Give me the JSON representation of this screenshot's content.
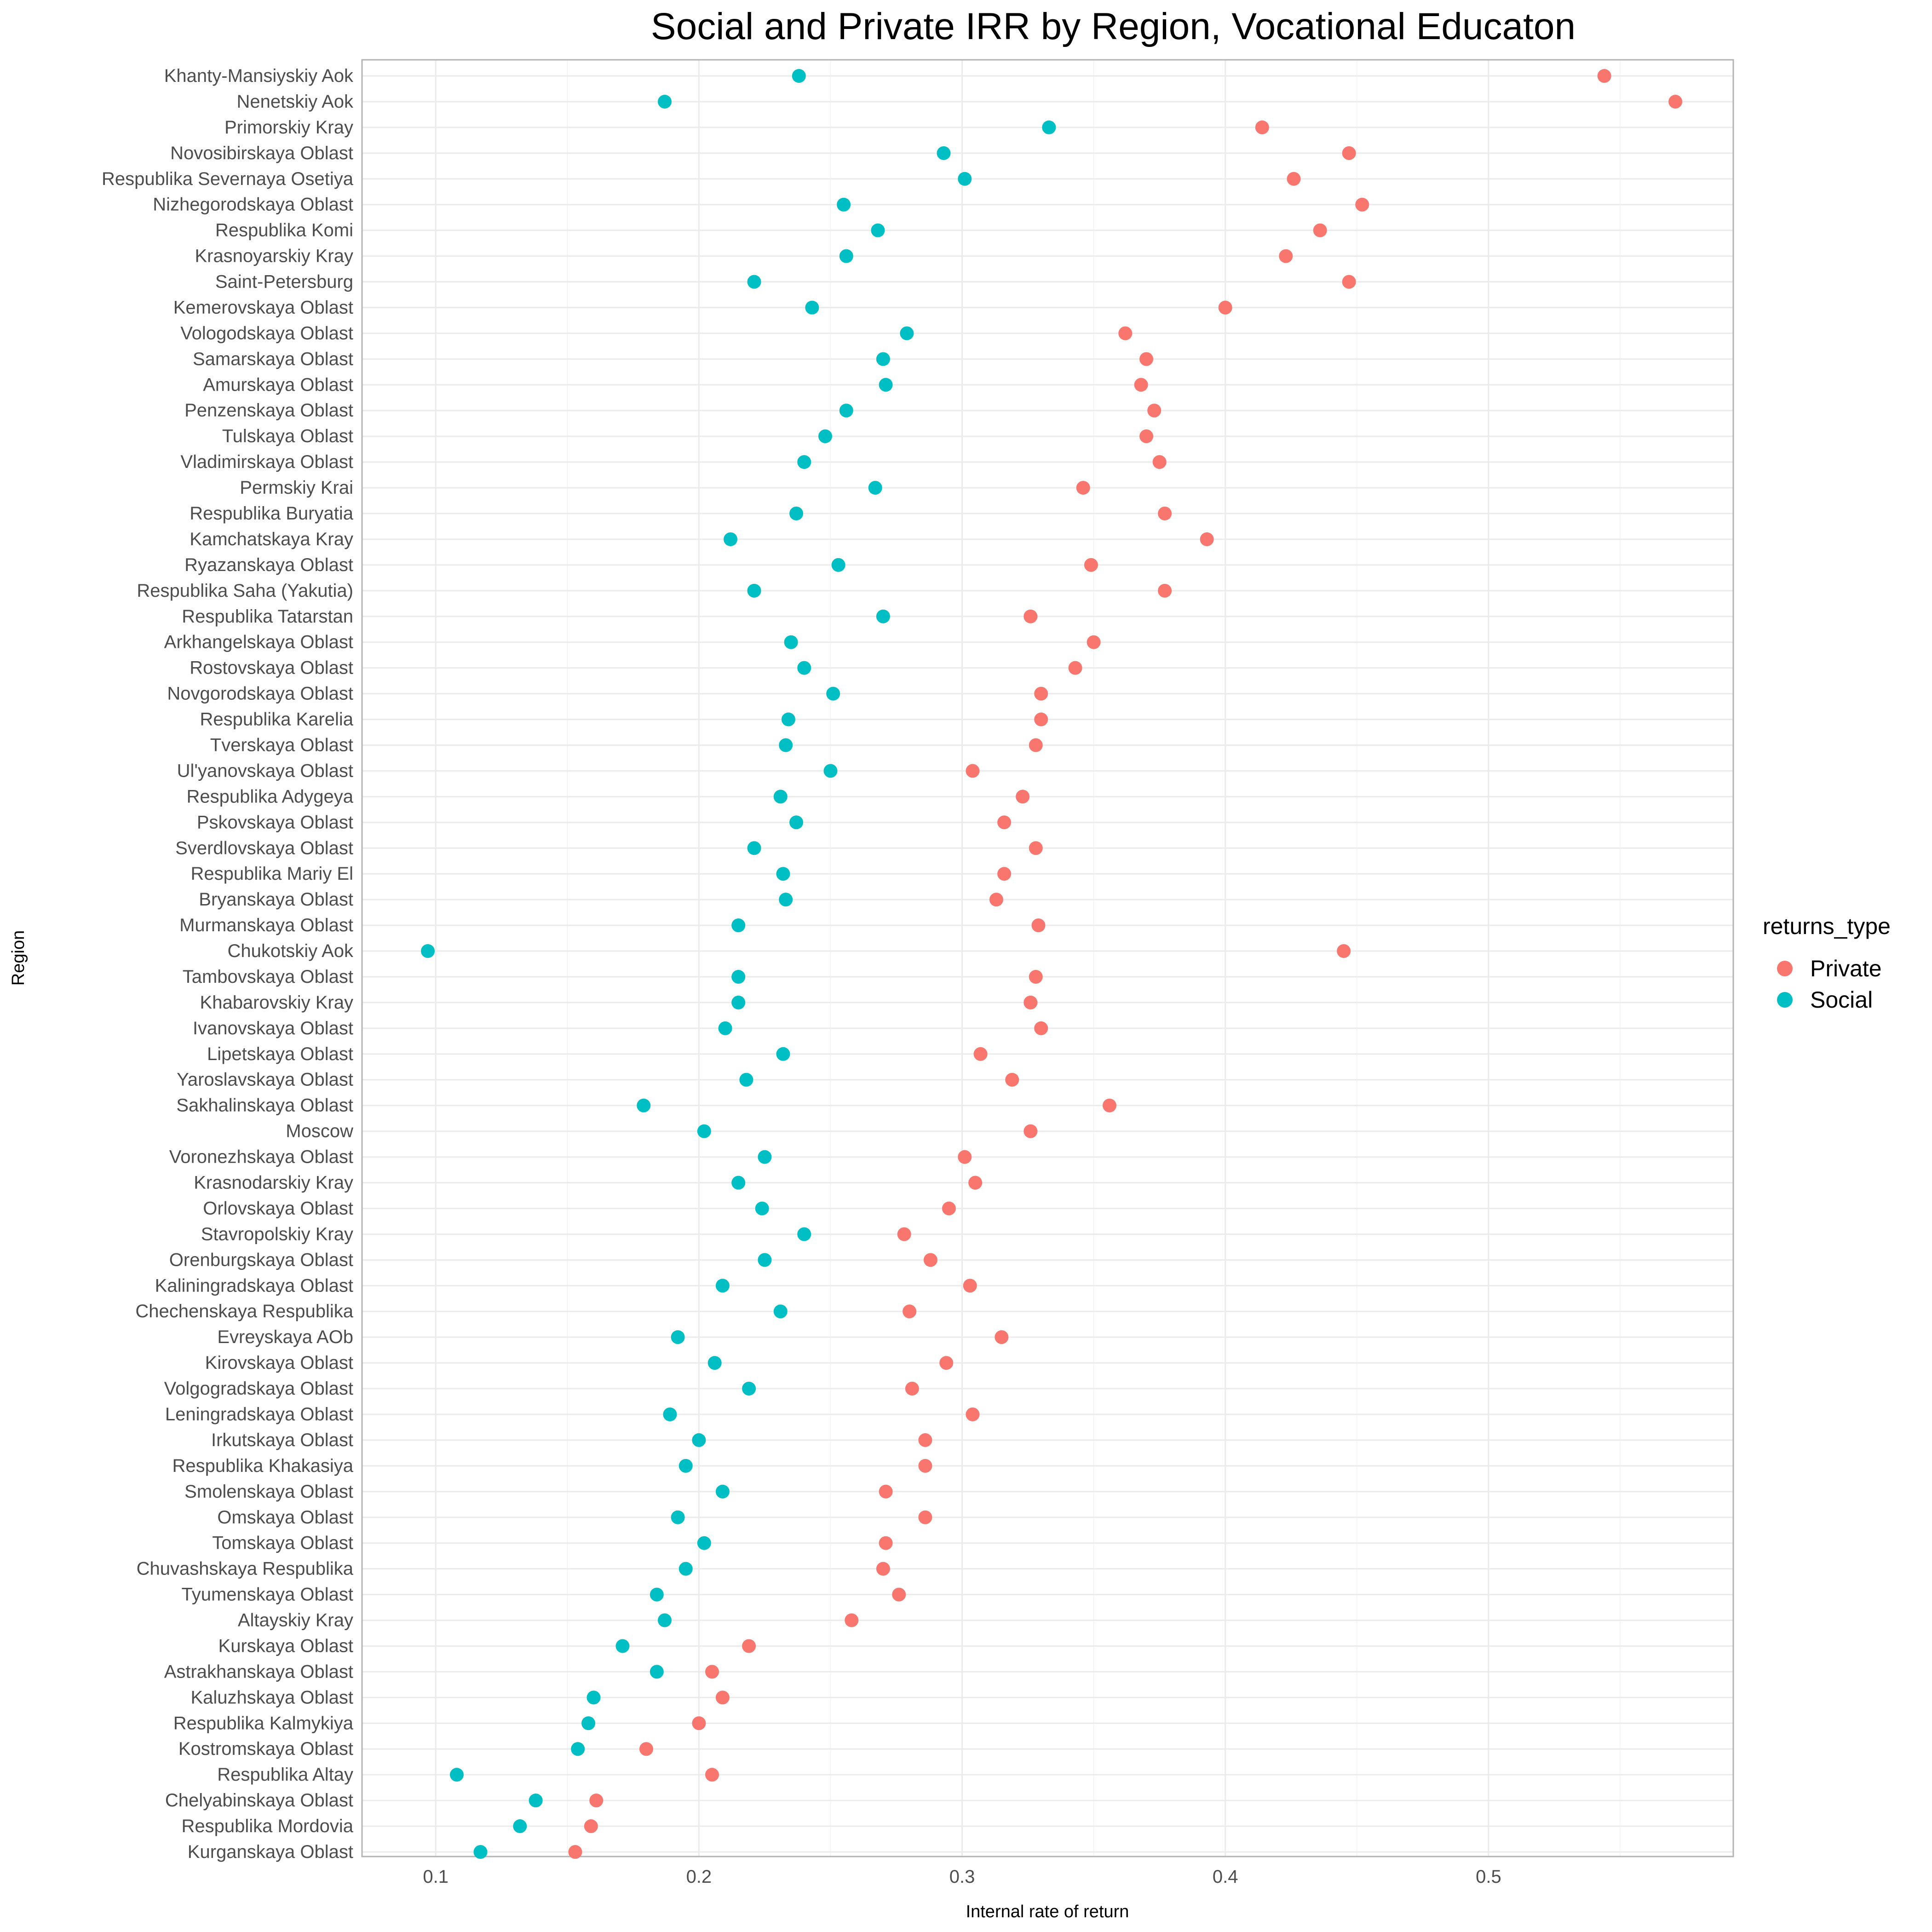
{
  "chart_data": {
    "type": "scatter",
    "title": "Social and Private IRR by Region, Vocational Educaton",
    "xlabel": "Internal rate of return",
    "ylabel": "Region",
    "xlim": [
      0.072,
      0.593
    ],
    "xticks": [
      "0.1",
      "0.2",
      "0.3",
      "0.4",
      "0.5"
    ],
    "grid": true,
    "legend": {
      "title": "returns_type",
      "placement": "right",
      "entries": [
        {
          "label": "Private",
          "color": "#F8766D"
        },
        {
          "label": "Social",
          "color": "#00BFC4"
        }
      ]
    },
    "categories": [
      "Khanty-Mansiyskiy Aok",
      "Nenetskiy Aok",
      "Primorskiy Kray",
      "Novosibirskaya Oblast",
      "Respublika Severnaya Osetiya",
      "Nizhegorodskaya Oblast",
      "Respublika Komi",
      "Krasnoyarskiy Kray",
      "Saint-Petersburg",
      "Kemerovskaya Oblast",
      "Vologodskaya Oblast",
      "Samarskaya Oblast",
      "Amurskaya Oblast",
      "Penzenskaya Oblast",
      "Tulskaya Oblast",
      "Vladimirskaya Oblast",
      "Permskiy Krai",
      "Respublika Buryatia",
      "Kamchatskaya Kray",
      "Ryazanskaya Oblast",
      "Respublika Saha (Yakutia)",
      "Respublika Tatarstan",
      "Arkhangelskaya Oblast",
      "Rostovskaya Oblast",
      "Novgorodskaya Oblast",
      "Respublika Karelia",
      "Tverskaya Oblast",
      "Ul'yanovskaya Oblast",
      "Respublika Adygeya",
      "Pskovskaya Oblast",
      "Sverdlovskaya Oblast",
      "Respublika Mariy El",
      "Bryanskaya Oblast",
      "Murmanskaya Oblast",
      "Chukotskiy Aok",
      "Tambovskaya Oblast",
      "Khabarovskiy Kray",
      "Ivanovskaya Oblast",
      "Lipetskaya Oblast",
      "Yaroslavskaya Oblast",
      "Sakhalinskaya Oblast",
      "Moscow",
      "Voronezhskaya Oblast",
      "Krasnodarskiy Kray",
      "Orlovskaya Oblast",
      "Stavropolskiy Kray",
      "Orenburgskaya Oblast",
      "Kaliningradskaya Oblast",
      "Chechenskaya Respublika",
      "Evreyskaya AOb",
      "Kirovskaya Oblast",
      "Volgogradskaya Oblast",
      "Leningradskaya Oblast",
      "Irkutskaya Oblast",
      "Respublika Khakasiya",
      "Smolenskaya Oblast",
      "Omskaya Oblast",
      "Tomskaya Oblast",
      "Chuvashskaya Respublika",
      "Tyumenskaya Oblast",
      "Altayskiy Kray",
      "Kurskaya Oblast",
      "Astrakhanskaya Oblast",
      "Kaluzhskaya Oblast",
      "Respublika Kalmykiya",
      "Kostromskaya Oblast",
      "Respublika Altay",
      "Chelyabinskaya Oblast",
      "Respublika Mordovia",
      "Kurganskaya Oblast"
    ],
    "series": [
      {
        "name": "Private",
        "color": "#F8766D",
        "values": [
          0.544,
          0.571,
          0.414,
          0.447,
          0.426,
          0.452,
          0.436,
          0.423,
          0.447,
          0.4,
          0.362,
          0.37,
          0.368,
          0.373,
          0.37,
          0.375,
          0.346,
          0.377,
          0.393,
          0.349,
          0.377,
          0.326,
          0.35,
          0.343,
          0.33,
          0.33,
          0.328,
          0.304,
          0.323,
          0.316,
          0.328,
          0.316,
          0.313,
          0.329,
          0.445,
          0.328,
          0.326,
          0.33,
          0.307,
          0.319,
          0.356,
          0.326,
          0.301,
          0.305,
          0.295,
          0.278,
          0.288,
          0.303,
          0.28,
          0.315,
          0.294,
          0.281,
          0.304,
          0.286,
          0.286,
          0.271,
          0.286,
          0.271,
          0.27,
          0.276,
          0.258,
          0.219,
          0.205,
          0.209,
          0.2,
          0.18,
          0.205,
          0.161,
          0.159,
          0.153
        ]
      },
      {
        "name": "Social",
        "color": "#00BFC4",
        "values": [
          0.238,
          0.187,
          0.333,
          0.293,
          0.301,
          0.255,
          0.268,
          0.256,
          0.221,
          0.243,
          0.279,
          0.27,
          0.271,
          0.256,
          0.248,
          0.24,
          0.267,
          0.237,
          0.212,
          0.253,
          0.221,
          0.27,
          0.235,
          0.24,
          0.251,
          0.234,
          0.233,
          0.25,
          0.231,
          0.237,
          0.221,
          0.232,
          0.233,
          0.215,
          0.097,
          0.215,
          0.215,
          0.21,
          0.232,
          0.218,
          0.179,
          0.202,
          0.225,
          0.215,
          0.224,
          0.24,
          0.225,
          0.209,
          0.231,
          0.192,
          0.206,
          0.219,
          0.189,
          0.2,
          0.195,
          0.209,
          0.192,
          0.202,
          0.195,
          0.184,
          0.187,
          0.171,
          0.184,
          0.16,
          0.158,
          0.154,
          0.108,
          0.138,
          0.132,
          0.117
        ]
      }
    ]
  }
}
